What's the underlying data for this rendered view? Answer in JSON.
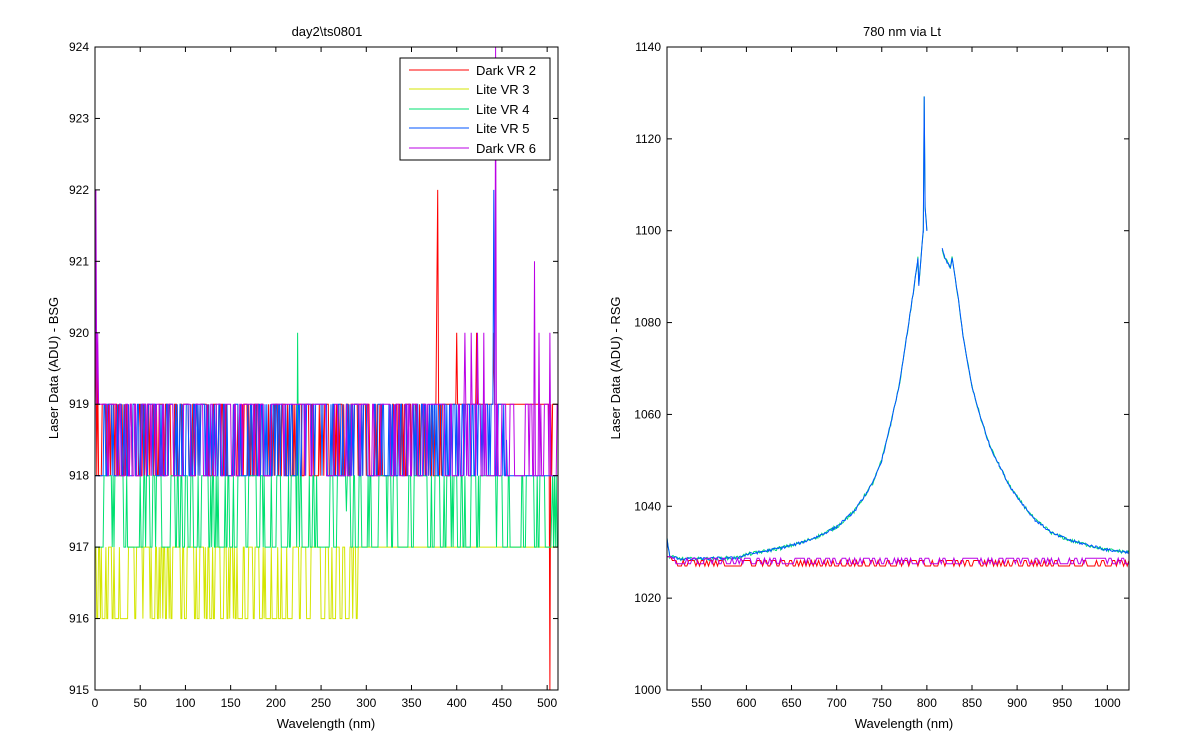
{
  "chart_data": [
    {
      "type": "line",
      "title": "day2\\ts0801",
      "xlabel": "Wavelength (nm)",
      "ylabel": "Laser Data (ADU) - BSG",
      "xlim": [
        0,
        512
      ],
      "ylim": [
        915,
        924
      ],
      "xticks": [
        0,
        50,
        100,
        150,
        200,
        250,
        300,
        350,
        400,
        450,
        500
      ],
      "yticks": [
        915,
        916,
        917,
        918,
        919,
        920,
        921,
        922,
        923,
        924
      ],
      "legend_position": "top-right",
      "grid": false,
      "series": [
        {
          "name": "Dark VR 2",
          "color": "#ff0000",
          "base": 919,
          "alt": 918,
          "alt_x_range": [
            0,
            385
          ],
          "toggle_step": 2,
          "spikes": [
            [
              1,
              920
            ],
            [
              3,
              919.5
            ],
            [
              378,
              920.5
            ],
            [
              379,
              922
            ],
            [
              400,
              920
            ],
            [
              422,
              920
            ],
            [
              441,
              920
            ],
            [
              503,
              915
            ],
            [
              505,
              918
            ]
          ]
        },
        {
          "name": "Lite VR 3",
          "color": "#d4e600",
          "base": 917,
          "alt": 916,
          "alt_x_range": [
            0,
            290
          ],
          "toggle_step": 3,
          "spikes": [
            [
              19,
              916
            ],
            [
              35,
              916
            ],
            [
              53,
              916
            ],
            [
              61,
              916
            ],
            [
              66,
              916
            ],
            [
              82,
              916
            ],
            [
              100,
              916
            ],
            [
              121,
              916
            ],
            [
              131,
              916
            ],
            [
              149,
              916
            ],
            [
              166,
              916
            ],
            [
              193,
              916
            ],
            [
              214,
              916
            ],
            [
              285,
              916
            ]
          ]
        },
        {
          "name": "Lite VR 4",
          "color": "#00e070",
          "base": 917,
          "alt": 918,
          "alt_x_range": [
            10,
            510
          ],
          "toggle_step": 4,
          "spikes": [
            [
              224,
              920
            ],
            [
              227,
              918
            ],
            [
              278,
              917.5
            ],
            [
              386,
              918
            ],
            [
              440,
              918
            ],
            [
              505,
              917.5
            ]
          ]
        },
        {
          "name": "Lite VR 5",
          "color": "#0055ff",
          "base": 918,
          "alt": 919,
          "alt_x_range": [
            10,
            455
          ],
          "toggle_step": 2,
          "spikes": [
            [
              441,
              922
            ],
            [
              437,
              918
            ],
            [
              455,
              918.5
            ]
          ]
        },
        {
          "name": "Dark VR 6",
          "color": "#bb00e6",
          "base": 918,
          "alt": 919,
          "alt_x_range": [
            0,
            512
          ],
          "toggle_step": 5,
          "spikes": [
            [
              1,
              922
            ],
            [
              3,
              920
            ],
            [
              409,
              920
            ],
            [
              416,
              920
            ],
            [
              423,
              920
            ],
            [
              430,
              920
            ],
            [
              443,
              924
            ],
            [
              486,
              921
            ],
            [
              491,
              920
            ],
            [
              503,
              920
            ]
          ]
        }
      ]
    },
    {
      "type": "line",
      "title": "780 nm via Lt",
      "xlabel": "Wavelength (nm)",
      "ylabel": "Laser Data (ADU) - RSG",
      "xlim": [
        512,
        1024
      ],
      "ylim": [
        1000,
        1140
      ],
      "xticks": [
        550,
        600,
        650,
        700,
        750,
        800,
        850,
        900,
        950,
        1000
      ],
      "yticks": [
        1000,
        1020,
        1040,
        1060,
        1080,
        1100,
        1120,
        1140
      ],
      "grid": false,
      "series": [
        {
          "color_a": "#00e070",
          "color_b": "#0055ff",
          "peak_center": 803,
          "peak_height": 1129,
          "baseline": 1029,
          "points": [
            [
              512,
              1033
            ],
            [
              515,
              1029
            ],
            [
              530,
              1028.5
            ],
            [
              560,
              1028.6
            ],
            [
              590,
              1028.8
            ],
            [
              600,
              1029.5
            ],
            [
              620,
              1030.2
            ],
            [
              640,
              1031
            ],
            [
              660,
              1032
            ],
            [
              680,
              1033.5
            ],
            [
              700,
              1035.5
            ],
            [
              720,
              1039
            ],
            [
              740,
              1045
            ],
            [
              750,
              1050
            ],
            [
              760,
              1058
            ],
            [
              770,
              1067
            ],
            [
              780,
              1080
            ],
            [
              786,
              1088
            ],
            [
              790,
              1094
            ],
            [
              791,
              1088
            ],
            [
              796,
              1100
            ],
            [
              797,
              1129
            ],
            [
              798,
              1105
            ],
            [
              800,
              1100
            ]
          ],
          "right_points": [
            [
              817,
              1096
            ],
            [
              820,
              1094
            ],
            [
              826,
              1092
            ],
            [
              828,
              1094
            ],
            [
              835,
              1085
            ],
            [
              840,
              1077
            ],
            [
              850,
              1066
            ],
            [
              860,
              1059
            ],
            [
              870,
              1053
            ],
            [
              880,
              1049
            ],
            [
              890,
              1045
            ],
            [
              900,
              1042
            ],
            [
              920,
              1037
            ],
            [
              940,
              1034
            ],
            [
              960,
              1032.5
            ],
            [
              980,
              1031.5
            ],
            [
              1000,
              1030.5
            ],
            [
              1024,
              1030
            ]
          ]
        },
        {
          "color_a": "#ff0000",
          "color_b": "#bb00e6",
          "baseline": 1027,
          "noise": 1.2
        }
      ]
    }
  ],
  "legend": [
    {
      "label": "Dark VR 2",
      "color": "#ff0000"
    },
    {
      "label": "Lite VR 3",
      "color": "#d4e600"
    },
    {
      "label": "Lite VR 4",
      "color": "#00e070"
    },
    {
      "label": "Lite VR 5",
      "color": "#0055ff"
    },
    {
      "label": "Dark VR 6",
      "color": "#bb00e6"
    }
  ]
}
